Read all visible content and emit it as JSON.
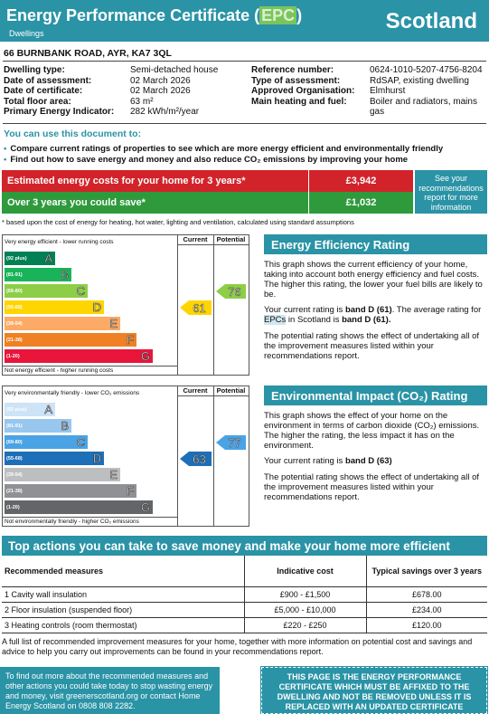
{
  "header": {
    "title_pre": "Energy Performance Certificate (",
    "title_epc": "EPC",
    "title_post": ")",
    "subtitle": "Dwellings",
    "country": "Scotland"
  },
  "address": "66 BURNBANK ROAD, AYR, KA7 3QL",
  "details_left": [
    {
      "k": "Dwelling type:",
      "v": "Semi-detached house"
    },
    {
      "k": "Date of assessment:",
      "v": "02 March 2026"
    },
    {
      "k": "Date of certificate:",
      "v": "02 March 2026"
    },
    {
      "k": "Total floor area:",
      "v": "63 m²"
    },
    {
      "k": "Primary Energy Indicator:",
      "v": "282 kWh/m²/year"
    }
  ],
  "details_right": [
    {
      "k": "Reference number:",
      "v": "0624-1010-5207-4756-8204"
    },
    {
      "k": "Type of assessment:",
      "v": "RdSAP, existing dwelling"
    },
    {
      "k": "Approved Organisation:",
      "v": "Elmhurst"
    },
    {
      "k": "Main heating and fuel:",
      "v": "Boiler and radiators, mains gas"
    }
  ],
  "use_doc": {
    "heading": "You can use this document to:",
    "bullets": [
      "Compare current ratings of properties to see which are more energy efficient and environmentally friendly",
      "Find out how to save energy and money and also reduce CO₂ emissions by improving your home"
    ]
  },
  "costs": {
    "estimated_label": "Estimated energy costs for your home for 3 years*",
    "estimated_value": "£3,942",
    "save_label": "Over 3 years you could save*",
    "save_value": "£1,032",
    "see_box": "See your recommendations report for more information",
    "note": "* based upon the cost of energy for heating, hot water, lighting and ventilation, calculated using standard assumptions"
  },
  "colors": {
    "teal": "#2a93a6",
    "red_cost": "#d2232a",
    "green_cost": "#2e9a3c"
  },
  "ee_chart": {
    "col_current": "Current",
    "col_potential": "Potential",
    "top_label": "Very energy efficient - lower running costs",
    "bottom_label": "Not energy efficient - higher running costs",
    "bands": [
      {
        "range": "(92 plus)",
        "letter": "A",
        "color": "#008054"
      },
      {
        "range": "(81-91)",
        "letter": "B",
        "color": "#19b459"
      },
      {
        "range": "(69-80)",
        "letter": "C",
        "color": "#8dce46"
      },
      {
        "range": "(55-68)",
        "letter": "D",
        "color": "#ffd500"
      },
      {
        "range": "(39-54)",
        "letter": "E",
        "color": "#fcaa65"
      },
      {
        "range": "(21-38)",
        "letter": "F",
        "color": "#ef8023"
      },
      {
        "range": "(1-20)",
        "letter": "G",
        "color": "#e9153b"
      }
    ],
    "current": {
      "value": "61",
      "band_index": 3,
      "color": "#ffd500"
    },
    "potential": {
      "value": "76",
      "band_index": 2,
      "color": "#8dce46"
    }
  },
  "ei_chart": {
    "col_current": "Current",
    "col_potential": "Potential",
    "top_label": "Very environmentally friendly - lower CO₂ emissions",
    "bottom_label": "Not environmentally friendly - higher CO₂ emissions",
    "bands": [
      {
        "range": "(92 plus)",
        "letter": "A",
        "color": "#cde3f6"
      },
      {
        "range": "(81-91)",
        "letter": "B",
        "color": "#97c6ee"
      },
      {
        "range": "(69-80)",
        "letter": "C",
        "color": "#4aa3e5"
      },
      {
        "range": "(55-68)",
        "letter": "D",
        "color": "#1d6fb8"
      },
      {
        "range": "(39-54)",
        "letter": "E",
        "color": "#bcbec0"
      },
      {
        "range": "(21-38)",
        "letter": "F",
        "color": "#8f9194"
      },
      {
        "range": "(1-20)",
        "letter": "G",
        "color": "#636569"
      }
    ],
    "current": {
      "value": "63",
      "band_index": 3,
      "color": "#1d6fb8"
    },
    "potential": {
      "value": "77",
      "band_index": 2,
      "color": "#4aa3e5"
    }
  },
  "ee_text": {
    "heading": "Energy Efficiency Rating",
    "p1": "This graph shows the current efficiency of your home, taking into account both energy efficiency and fuel costs. The higher this rating, the lower your fuel bills are likely to be.",
    "p2_pre": "Your current rating is ",
    "p2_b1": "band D (61)",
    "p2_mid": ". The average rating for ",
    "p2_epc": "EPCs",
    "p2_mid2": " in Scotland is ",
    "p2_b2": "band D (61).",
    "p3": "The potential rating shows the effect of undertaking all of the improvement measures listed within your recommendations report."
  },
  "ei_text": {
    "heading": "Environmental Impact (CO₂) Rating",
    "p1": "This graph shows the effect of your home on the environment in terms of carbon dioxide (CO₂) emissions. The higher the rating, the less impact it has on the environment.",
    "p2_pre": "Your current rating is ",
    "p2_b": "band D (63)",
    "p3": "The potential rating shows the effect of undertaking all of the improvement measures listed within your recommendations report."
  },
  "top_actions": {
    "heading": "Top actions you can take to save money and make your home more efficient",
    "col1": "Recommended measures",
    "col2": "Indicative cost",
    "col3": "Typical savings over 3 years",
    "rows": [
      {
        "m": "1 Cavity wall insulation",
        "cost": "£900 - £1,500",
        "save": "£678.00"
      },
      {
        "m": "2 Floor insulation (suspended floor)",
        "cost": "£5,000 - £10,000",
        "save": "£234.00"
      },
      {
        "m": "3 Heating controls (room thermostat)",
        "cost": "£220 - £250",
        "save": "£120.00"
      }
    ],
    "full_list": "A full list of recommended improvement measures for your home, together with more information on potential cost and savings and advice to help you carry out improvements can be found in your recommendations report."
  },
  "footer": {
    "left": "To find out more about the recommended measures and other actions you could take today to stop wasting energy and money, visit greenerscotland.org or contact Home Energy Scotland on 0808 808 2282.",
    "right": "THIS PAGE IS THE ENERGY PERFORMANCE CERTIFICATE WHICH MUST BE AFFIXED TO THE DWELLING AND NOT BE REMOVED UNLESS IT IS REPLACED WITH AN UPDATED CERTIFICATE"
  }
}
